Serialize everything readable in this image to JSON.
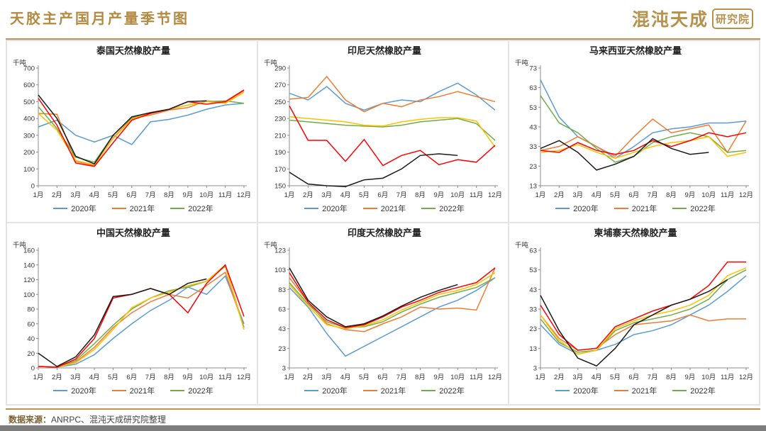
{
  "header": {
    "title": "天胶主产国月产量季节图",
    "logo_main": "混沌天成",
    "logo_badge": "研究院"
  },
  "unit_label": "千吨",
  "footer": {
    "label": "数据来源：",
    "text": "ANRPC、混沌天成研究院整理"
  },
  "legend_years": [
    "2020年",
    "2021年",
    "2022年"
  ],
  "palette": {
    "blue": "#5B9BD5",
    "orange": "#ED7D31",
    "green": "#70AD47",
    "yellow": "#FFC000",
    "red": "#FF0000",
    "black": "#1a1a1a",
    "gold": "#b5914c"
  },
  "chart_data": [
    {
      "type": "line",
      "title": "泰国天然橡胶产量",
      "ylabel": "千吨",
      "ylim": [
        0,
        700
      ],
      "yticks": [
        0,
        100,
        200,
        300,
        400,
        500,
        600,
        700
      ],
      "x": [
        "1月",
        "2月",
        "3月",
        "4月",
        "5月",
        "6月",
        "7月",
        "8月",
        "9月",
        "10月",
        "11月",
        "12月"
      ],
      "legend_position": "bottom",
      "grid": false,
      "series": [
        {
          "label": "2020年",
          "color": "#5B9BD5",
          "values": [
            350,
            390,
            300,
            260,
            300,
            245,
            380,
            395,
            420,
            455,
            480,
            490
          ]
        },
        {
          "label": "2021年",
          "color": "#ED7D31",
          "values": [
            430,
            425,
            145,
            120,
            285,
            400,
            420,
            450,
            465,
            505,
            495,
            565
          ]
        },
        {
          "label": "2022年",
          "color": "#70AD47",
          "values": [
            470,
            340,
            170,
            140,
            300,
            405,
            430,
            455,
            480,
            500,
            505,
            490
          ]
        },
        {
          "label": "",
          "color": "#FFC000",
          "values": [
            430,
            330,
            150,
            125,
            280,
            395,
            435,
            455,
            480,
            500,
            490,
            555
          ]
        },
        {
          "label": "",
          "color": "#FF0000",
          "values": [
            520,
            360,
            135,
            115,
            255,
            390,
            430,
            455,
            500,
            485,
            500,
            570
          ]
        },
        {
          "label": "",
          "color": "#1a1a1a",
          "values": [
            540,
            400,
            175,
            130,
            300,
            410,
            435,
            455,
            500,
            505
          ]
        }
      ]
    },
    {
      "type": "line",
      "title": "印尼天然橡胶产量",
      "ylabel": "千吨",
      "ylim": [
        150,
        290
      ],
      "yticks": [
        150,
        170,
        190,
        210,
        230,
        250,
        270,
        290
      ],
      "x": [
        "1月",
        "2月",
        "3月",
        "4月",
        "5月",
        "6月",
        "7月",
        "8月",
        "9月",
        "10月",
        "11月",
        "12月"
      ],
      "legend_position": "bottom",
      "grid": false,
      "series": [
        {
          "label": "2020年",
          "color": "#5B9BD5",
          "values": [
            260,
            252,
            268,
            248,
            240,
            248,
            252,
            250,
            262,
            272,
            258,
            240
          ]
        },
        {
          "label": "2021年",
          "color": "#ED7D31",
          "values": [
            253,
            255,
            280,
            252,
            238,
            248,
            244,
            252,
            256,
            262,
            256,
            250
          ]
        },
        {
          "label": "2022年",
          "color": "#70AD47",
          "values": [
            228,
            226,
            224,
            222,
            221,
            220,
            222,
            226,
            228,
            230,
            224,
            204
          ]
        },
        {
          "label": "",
          "color": "#FFC000",
          "values": [
            232,
            230,
            228,
            226,
            222,
            221,
            226,
            229,
            231,
            231,
            227,
            196
          ]
        },
        {
          "label": "",
          "color": "#FF0000",
          "values": [
            245,
            204,
            204,
            179,
            205,
            174,
            186,
            192,
            175,
            181,
            178,
            198
          ]
        },
        {
          "label": "",
          "color": "#1a1a1a",
          "values": [
            166,
            152,
            150,
            149,
            157,
            159,
            170,
            186,
            188,
            186
          ]
        }
      ]
    },
    {
      "type": "line",
      "title": "马来西亚天然橡胶产量",
      "ylabel": "千吨",
      "ylim": [
        13,
        73
      ],
      "yticks": [
        13,
        23,
        33,
        43,
        53,
        63,
        73
      ],
      "x": [
        "1月",
        "2月",
        "3月",
        "4月",
        "5月",
        "6月",
        "7月",
        "8月",
        "9月",
        "10月",
        "11月",
        "12月"
      ],
      "legend_position": "bottom",
      "grid": false,
      "series": [
        {
          "label": "2020年",
          "color": "#5B9BD5",
          "values": [
            67,
            48,
            38,
            33,
            27,
            33,
            40,
            42,
            43,
            45,
            45,
            46
          ]
        },
        {
          "label": "2021年",
          "color": "#ED7D31",
          "values": [
            31,
            33,
            38,
            33,
            28,
            38,
            47,
            40,
            42,
            44,
            30,
            46
          ]
        },
        {
          "label": "2022年",
          "color": "#70AD47",
          "values": [
            59,
            45,
            40,
            32,
            25,
            28,
            35,
            38,
            40,
            38,
            30,
            31
          ]
        },
        {
          "label": "",
          "color": "#FFC000",
          "values": [
            30,
            31,
            34,
            30,
            27,
            30,
            33,
            35,
            36,
            38,
            28,
            30
          ]
        },
        {
          "label": "",
          "color": "#FF0000",
          "values": [
            31,
            30,
            35,
            31,
            29,
            31,
            36,
            33,
            36,
            40,
            38,
            40
          ]
        },
        {
          "label": "",
          "color": "#1a1a1a",
          "values": [
            32,
            36,
            30,
            21,
            24,
            28,
            37,
            32,
            29,
            30
          ]
        }
      ]
    },
    {
      "type": "line",
      "title": "中国天然橡胶产量",
      "ylabel": "千吨",
      "ylim": [
        0,
        160
      ],
      "yticks": [
        0,
        20,
        40,
        60,
        80,
        100,
        120,
        140,
        160
      ],
      "x": [
        "1月",
        "2月",
        "3月",
        "4月",
        "5月",
        "6月",
        "7月",
        "8月",
        "9月",
        "10月",
        "11月",
        "12月"
      ],
      "legend_position": "bottom",
      "grid": false,
      "series": [
        {
          "label": "2020年",
          "color": "#5B9BD5",
          "values": [
            2,
            1,
            5,
            18,
            40,
            60,
            78,
            92,
            110,
            100,
            125,
            60
          ]
        },
        {
          "label": "2021年",
          "color": "#ED7D31",
          "values": [
            2,
            1,
            8,
            28,
            55,
            75,
            90,
            100,
            95,
            112,
            130,
            55
          ]
        },
        {
          "label": "2022年",
          "color": "#70AD47",
          "values": [
            2,
            1,
            10,
            33,
            58,
            80,
            95,
            105,
            110,
            118,
            138,
            55
          ]
        },
        {
          "label": "",
          "color": "#FFC000",
          "values": [
            2,
            1,
            7,
            25,
            52,
            82,
            95,
            103,
            112,
            118,
            140,
            52
          ]
        },
        {
          "label": "",
          "color": "#FF0000",
          "values": [
            2,
            1,
            12,
            40,
            95,
            100,
            108,
            100,
            75,
            115,
            140,
            70
          ]
        },
        {
          "label": "",
          "color": "#1a1a1a",
          "values": [
            20,
            2,
            15,
            45,
            97,
            100,
            108,
            100,
            115,
            121
          ]
        }
      ]
    },
    {
      "type": "line",
      "title": "印度天然橡胶产量",
      "ylabel": "千吨",
      "ylim": [
        3,
        123
      ],
      "yticks": [
        3,
        23,
        43,
        63,
        83,
        103,
        123
      ],
      "x": [
        "1月",
        "2月",
        "3月",
        "4月",
        "5月",
        "6月",
        "7月",
        "8月",
        "9月",
        "10月",
        "11月",
        "12月"
      ],
      "legend_position": "bottom",
      "grid": false,
      "series": [
        {
          "label": "2020年",
          "color": "#5B9BD5",
          "values": [
            85,
            65,
            38,
            15,
            25,
            35,
            45,
            55,
            65,
            72,
            82,
            95
          ]
        },
        {
          "label": "2021年",
          "color": "#ED7D31",
          "values": [
            95,
            70,
            48,
            42,
            40,
            48,
            55,
            65,
            63,
            64,
            62,
            105
          ]
        },
        {
          "label": "2022年",
          "color": "#70AD47",
          "values": [
            90,
            68,
            50,
            44,
            45,
            50,
            60,
            68,
            75,
            80,
            85,
            95
          ]
        },
        {
          "label": "",
          "color": "#FFC000",
          "values": [
            88,
            66,
            47,
            43,
            46,
            52,
            62,
            70,
            78,
            82,
            88,
            100
          ]
        },
        {
          "label": "",
          "color": "#FF0000",
          "values": [
            100,
            70,
            52,
            44,
            47,
            55,
            65,
            72,
            80,
            85,
            90,
            105
          ]
        },
        {
          "label": "",
          "color": "#1a1a1a",
          "values": [
            105,
            72,
            55,
            45,
            48,
            56,
            66,
            75,
            82,
            88
          ]
        }
      ]
    },
    {
      "type": "line",
      "title": "柬埔寨天然橡胶产量",
      "ylabel": "千吨",
      "ylim": [
        3,
        63
      ],
      "yticks": [
        3,
        13,
        23,
        33,
        43,
        53,
        63
      ],
      "x": [
        "1月",
        "2月",
        "3月",
        "4月",
        "5月",
        "6月",
        "7月",
        "8月",
        "9月",
        "10月",
        "11月",
        "12月"
      ],
      "legend_position": "bottom",
      "grid": false,
      "series": [
        {
          "label": "2020年",
          "color": "#5B9BD5",
          "values": [
            25,
            15,
            10,
            12,
            15,
            20,
            22,
            25,
            30,
            35,
            42,
            50
          ]
        },
        {
          "label": "2021年",
          "color": "#ED7D31",
          "values": [
            30,
            18,
            12,
            13,
            20,
            25,
            26,
            27,
            30,
            27,
            28,
            28
          ]
        },
        {
          "label": "2022年",
          "color": "#70AD47",
          "values": [
            28,
            16,
            11,
            12,
            22,
            26,
            28,
            30,
            33,
            38,
            48,
            53
          ]
        },
        {
          "label": "",
          "color": "#FFC000",
          "values": [
            30,
            17,
            10,
            12,
            23,
            27,
            30,
            32,
            35,
            40,
            50,
            54
          ]
        },
        {
          "label": "",
          "color": "#FF0000",
          "values": [
            35,
            20,
            12,
            13,
            24,
            28,
            32,
            35,
            38,
            45,
            57,
            57
          ]
        },
        {
          "label": "",
          "color": "#1a1a1a",
          "values": [
            40,
            22,
            8,
            4,
            13,
            25,
            30,
            35,
            38,
            42,
            48
          ]
        }
      ]
    }
  ]
}
